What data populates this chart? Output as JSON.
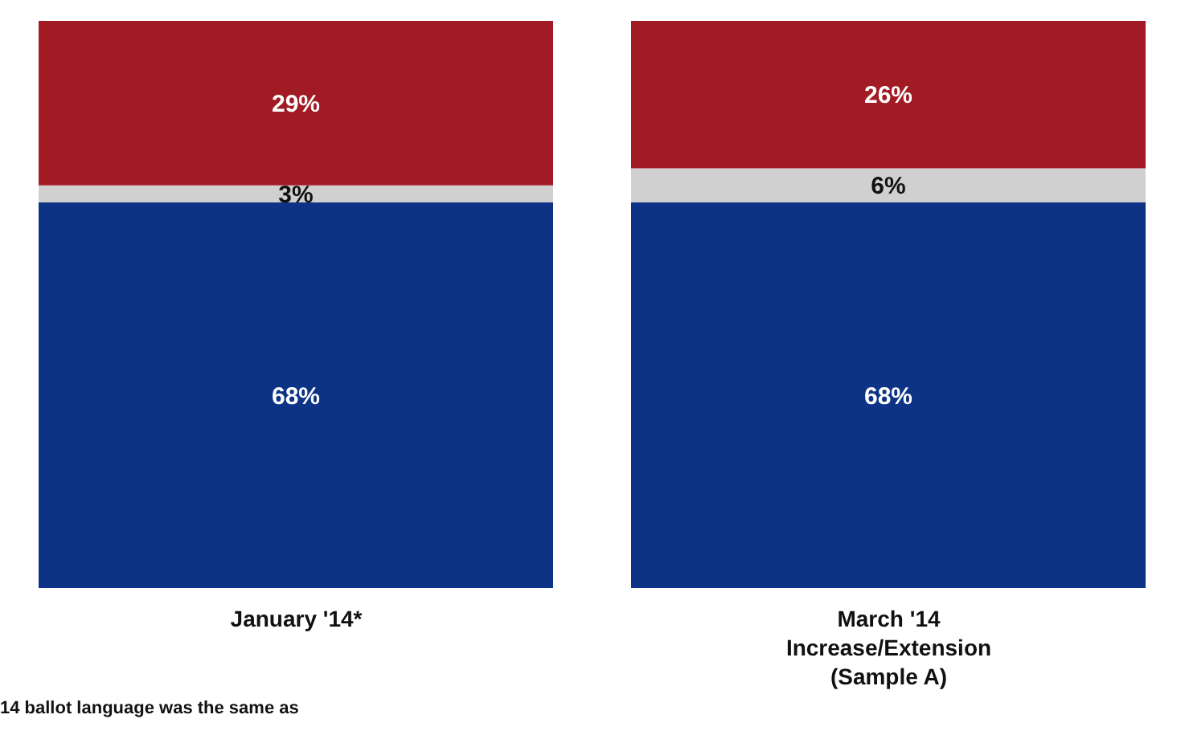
{
  "chart_data": {
    "type": "bar",
    "stacked": true,
    "categories": [
      "January '14*",
      "March '14\nIncrease/Extension\n(Sample A)"
    ],
    "series": [
      {
        "color": "#0c3385",
        "values": [
          68,
          68
        ],
        "value_labels": [
          "68%",
          "68%"
        ]
      },
      {
        "color": "#d0d0d0",
        "values": [
          3,
          6
        ],
        "value_labels": [
          "3%",
          "6%"
        ]
      },
      {
        "color": "#a01b24",
        "values": [
          29,
          26
        ],
        "value_labels": [
          "29%",
          "26%"
        ]
      }
    ],
    "tick_labels": "x",
    "legend": false,
    "grid": false,
    "annotations": [
      "14 ballot language was the same as"
    ]
  }
}
